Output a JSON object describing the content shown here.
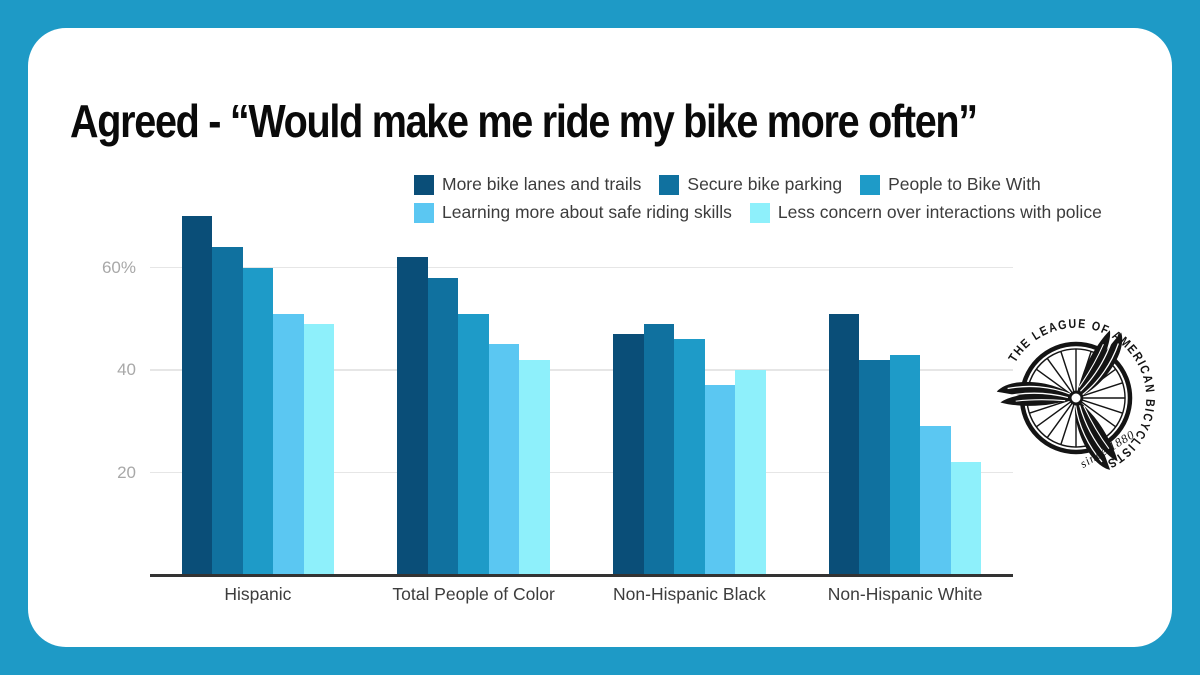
{
  "title": "Agreed - “Would make me ride my bike more often”",
  "chart_data": {
    "type": "bar",
    "categories": [
      "Hispanic",
      "Total People of Color",
      "Non-Hispanic Black",
      "Non-Hispanic White"
    ],
    "series": [
      {
        "name": "More bike lanes and trails",
        "color": "#0a4e78",
        "values": [
          70,
          62,
          47,
          51
        ]
      },
      {
        "name": "Secure bike parking",
        "color": "#10719f",
        "values": [
          64,
          58,
          49,
          42
        ]
      },
      {
        "name": "People to Bike With",
        "color": "#1e9bc8",
        "values": [
          60,
          51,
          46,
          43
        ]
      },
      {
        "name": "Learning more about safe riding skills",
        "color": "#5bc7f2",
        "values": [
          51,
          45,
          37,
          29
        ]
      },
      {
        "name": "Less concern over interactions with police",
        "color": "#8ef0fb",
        "values": [
          49,
          42,
          40,
          22
        ]
      }
    ],
    "title": "Agreed - “Would make me ride my bike more often”",
    "xlabel": "",
    "ylabel": "",
    "y_ticks": [
      {
        "value": 20,
        "label": "20"
      },
      {
        "value": 40,
        "label": "40"
      },
      {
        "value": 60,
        "label": "60%"
      }
    ],
    "ylim": [
      0,
      70
    ],
    "grid": true,
    "legend_position": "top"
  },
  "logo": {
    "circular_text": "THE LEAGUE OF AMERICAN BICYCLISTS",
    "tagline": "since 1880"
  },
  "colors": {
    "frame": "#1e9ac6",
    "card": "#ffffff",
    "title": "#0a0a0a",
    "axis_line": "#333333",
    "gridline": "#e6e6e6",
    "tick_label": "#a8a8a8",
    "category_label": "#3d3d3d",
    "legend_text": "#3c3c3c",
    "logo_ink": "#141414"
  }
}
